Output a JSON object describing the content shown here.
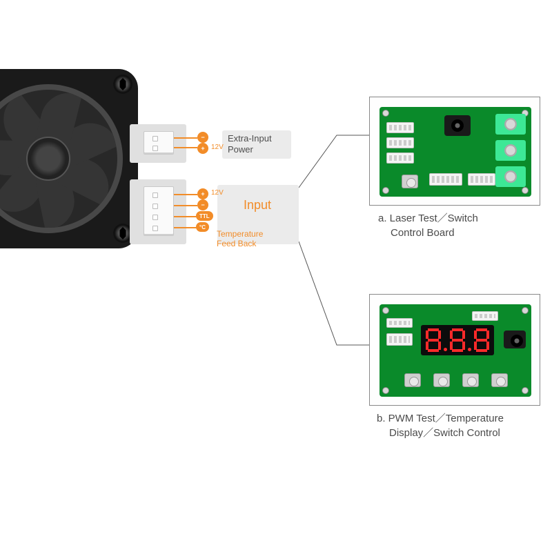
{
  "colors": {
    "accent": "#f28c28",
    "pcb_green": "#0a8a2a",
    "terminal_green": "#3de896",
    "bg_gray": "#ebebeb",
    "text_gray": "#4d4d4d",
    "seg_red": "#ff2a2a",
    "fan_black": "#1a1a1a"
  },
  "extra_input": {
    "box_text_line1": "Extra-Input",
    "box_text_line2": "Power",
    "pins": [
      {
        "badge_type": "circle",
        "badge_text": "−"
      },
      {
        "badge_type": "circle",
        "badge_text": "+"
      }
    ],
    "voltage_label": "12V"
  },
  "main_input": {
    "title": "Input",
    "pins": [
      {
        "badge_type": "circle",
        "badge_text": "+",
        "extra_label": "12V"
      },
      {
        "badge_type": "circle",
        "badge_text": "−"
      },
      {
        "badge_type": "pill",
        "badge_text": "TTL"
      },
      {
        "badge_type": "pill",
        "badge_text": "°C"
      }
    ],
    "feedback_line1": "Temperature",
    "feedback_line2": "Feed Back"
  },
  "board_a": {
    "caption_line1": "a. Laser Test／Switch",
    "caption_line2": "Control Board"
  },
  "board_b": {
    "caption_line1": "b. PWM Test／Temperature",
    "caption_line2": "Display／Switch Control",
    "display_digits": [
      "8",
      ".",
      "8",
      ".",
      "8"
    ]
  },
  "fan": {
    "blade_count": 7
  }
}
